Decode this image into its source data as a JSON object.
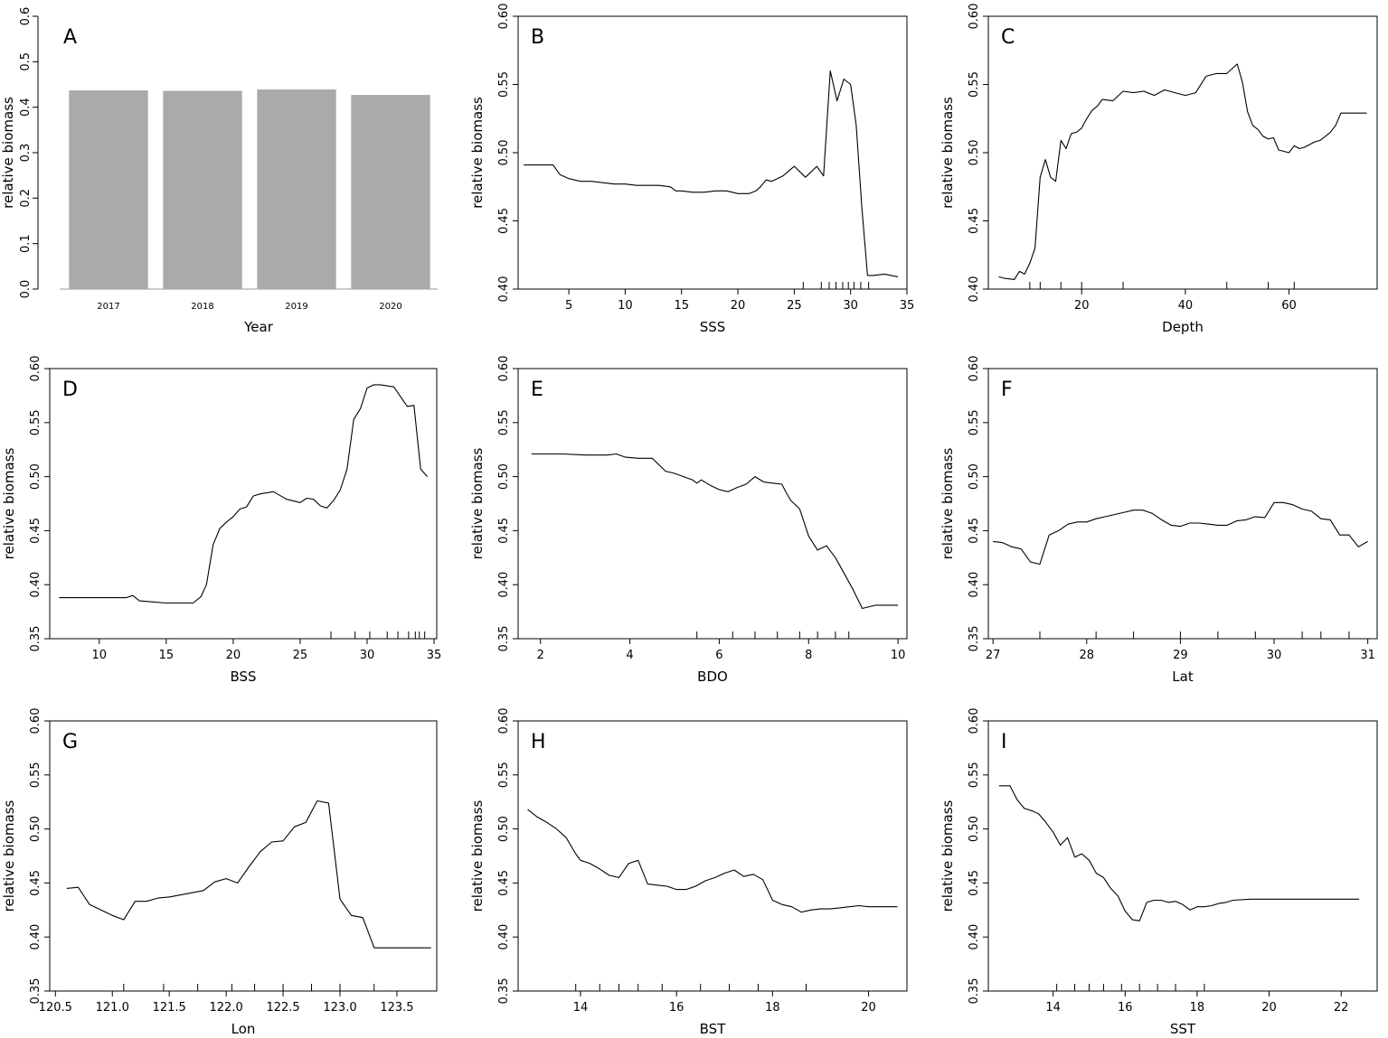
{
  "chart_data": [
    {
      "panel": "A",
      "type": "bar",
      "xlabel": "Year",
      "ylabel": "relative biomass",
      "categories": [
        "2017",
        "2018",
        "2019",
        "2020"
      ],
      "values": [
        0.437,
        0.436,
        0.439,
        0.427
      ],
      "ylim": [
        0,
        0.6
      ],
      "yticks": [
        "0.0",
        "0.1",
        "0.2",
        "0.3",
        "0.4",
        "0.5",
        "0.6"
      ],
      "bar_color": "#aaaaaa",
      "frame": false
    },
    {
      "panel": "B",
      "type": "line",
      "xlabel": "SSS",
      "ylabel": "relative biomass",
      "xlim": [
        0.5,
        35
      ],
      "ylim": [
        0.4,
        0.6
      ],
      "xticks": [
        "5",
        "10",
        "15",
        "20",
        "25",
        "30",
        "35"
      ],
      "yticks": [
        "0.40",
        "0.45",
        "0.50",
        "0.55",
        "0.60"
      ],
      "x": [
        1,
        2,
        3,
        3.6,
        4.2,
        5,
        6,
        7,
        8,
        9,
        10,
        11,
        12,
        13,
        14,
        14.5,
        15,
        16,
        17,
        18,
        19,
        20,
        21,
        21.6,
        22,
        22.5,
        23,
        24,
        25,
        26,
        27,
        27.6,
        28.2,
        28.8,
        29.4,
        30,
        30.5,
        31,
        31.5,
        32,
        33,
        34.2
      ],
      "y": [
        0.491,
        0.491,
        0.491,
        0.491,
        0.484,
        0.481,
        0.479,
        0.479,
        0.478,
        0.477,
        0.477,
        0.476,
        0.476,
        0.476,
        0.475,
        0.472,
        0.472,
        0.471,
        0.471,
        0.472,
        0.472,
        0.47,
        0.47,
        0.472,
        0.475,
        0.48,
        0.479,
        0.483,
        0.49,
        0.482,
        0.49,
        0.483,
        0.56,
        0.538,
        0.554,
        0.55,
        0.52,
        0.46,
        0.41,
        0.41,
        0.411,
        0.409
      ],
      "rug": [
        25.8,
        27.4,
        28.1,
        28.7,
        29.3,
        29.8,
        30.3,
        30.9,
        31.6
      ]
    },
    {
      "panel": "C",
      "type": "line",
      "xlabel": "Depth",
      "ylabel": "relative biomass",
      "xlim": [
        2,
        77
      ],
      "ylim": [
        0.4,
        0.6
      ],
      "xticks": [
        "20",
        "40",
        "60"
      ],
      "xtick_values": [
        20,
        40,
        60
      ],
      "yticks": [
        "0.40",
        "0.45",
        "0.50",
        "0.55",
        "0.60"
      ],
      "x": [
        4,
        5,
        7,
        8,
        9,
        10,
        11,
        12,
        13,
        14,
        15,
        16,
        17,
        18,
        19,
        20,
        21,
        22,
        23,
        24,
        26,
        28,
        30,
        32,
        34,
        36,
        38,
        40,
        42,
        44,
        46,
        48,
        50,
        51,
        52,
        53,
        54,
        55,
        56,
        57,
        58,
        60,
        61,
        62,
        63,
        64,
        65,
        66,
        67,
        68,
        69,
        70,
        71,
        72,
        73,
        74,
        75
      ],
      "y": [
        0.409,
        0.408,
        0.407,
        0.413,
        0.411,
        0.419,
        0.43,
        0.482,
        0.495,
        0.482,
        0.479,
        0.509,
        0.503,
        0.514,
        0.515,
        0.518,
        0.525,
        0.531,
        0.534,
        0.539,
        0.538,
        0.545,
        0.544,
        0.545,
        0.542,
        0.546,
        0.544,
        0.542,
        0.544,
        0.556,
        0.558,
        0.558,
        0.565,
        0.552,
        0.53,
        0.52,
        0.517,
        0.512,
        0.51,
        0.511,
        0.502,
        0.5,
        0.505,
        0.503,
        0.504,
        0.506,
        0.508,
        0.509,
        0.512,
        0.515,
        0.52,
        0.529,
        0.529,
        0.529,
        0.529,
        0.529,
        0.529
      ],
      "rug": [
        10,
        12,
        16,
        20,
        28,
        48,
        56,
        61
      ]
    },
    {
      "panel": "D",
      "type": "line",
      "xlabel": "BSS",
      "ylabel": "relative biomass",
      "xlim": [
        6.3,
        35.2
      ],
      "ylim": [
        0.35,
        0.6
      ],
      "xticks": [
        "10",
        "15",
        "20",
        "25",
        "30",
        "35"
      ],
      "yticks": [
        "0.35",
        "0.40",
        "0.45",
        "0.50",
        "0.55",
        "0.60"
      ],
      "x": [
        7,
        8,
        9,
        10,
        11,
        12,
        12.5,
        13,
        14,
        15,
        16,
        17,
        17.6,
        18,
        18.5,
        19,
        19.5,
        20,
        20.5,
        21,
        21.5,
        22,
        23,
        24,
        25,
        25.5,
        26,
        26.5,
        27,
        27.5,
        28,
        28.5,
        29,
        29.5,
        30,
        30.5,
        31,
        32,
        33,
        33.5,
        34,
        34.5
      ],
      "y": [
        0.388,
        0.388,
        0.388,
        0.388,
        0.388,
        0.388,
        0.39,
        0.385,
        0.384,
        0.383,
        0.383,
        0.383,
        0.389,
        0.4,
        0.437,
        0.452,
        0.458,
        0.463,
        0.47,
        0.472,
        0.482,
        0.484,
        0.486,
        0.479,
        0.476,
        0.48,
        0.479,
        0.473,
        0.471,
        0.478,
        0.488,
        0.507,
        0.553,
        0.563,
        0.582,
        0.585,
        0.585,
        0.583,
        0.565,
        0.566,
        0.507,
        0.5
      ],
      "rug": [
        27.3,
        29.1,
        30.2,
        31.5,
        32.3,
        33.1,
        33.6,
        33.9,
        34.3
      ]
    },
    {
      "panel": "E",
      "type": "line",
      "xlabel": "BDO",
      "ylabel": "relative biomass",
      "xlim": [
        1.5,
        10.2
      ],
      "ylim": [
        0.35,
        0.6
      ],
      "xticks": [
        "2",
        "4",
        "6",
        "8",
        "10"
      ],
      "yticks": [
        "0.35",
        "0.40",
        "0.45",
        "0.50",
        "0.55",
        "0.60"
      ],
      "x": [
        1.8,
        2.5,
        3,
        3.3,
        3.5,
        3.7,
        3.9,
        4.2,
        4.5,
        4.8,
        5,
        5.2,
        5.4,
        5.5,
        5.6,
        5.8,
        6,
        6.2,
        6.4,
        6.6,
        6.8,
        7,
        7.2,
        7.4,
        7.5,
        7.6,
        7.8,
        8,
        8.2,
        8.4,
        8.6,
        8.8,
        9,
        9.2,
        9.5,
        10
      ],
      "y": [
        0.521,
        0.521,
        0.52,
        0.52,
        0.52,
        0.521,
        0.518,
        0.517,
        0.517,
        0.505,
        0.503,
        0.5,
        0.497,
        0.494,
        0.497,
        0.492,
        0.488,
        0.486,
        0.49,
        0.493,
        0.5,
        0.495,
        0.494,
        0.493,
        0.485,
        0.478,
        0.47,
        0.445,
        0.432,
        0.436,
        0.425,
        0.41,
        0.395,
        0.378,
        0.381,
        0.381
      ],
      "rug": [
        5.5,
        6.3,
        6.8,
        7.3,
        7.8,
        8.2,
        8.6,
        8.9
      ]
    },
    {
      "panel": "F",
      "type": "line",
      "xlabel": "Lat",
      "ylabel": "relative biomass",
      "xlim": [
        26.95,
        31.1
      ],
      "ylim": [
        0.35,
        0.6
      ],
      "xticks": [
        "27",
        "28",
        "29",
        "30",
        "31"
      ],
      "yticks": [
        "0.35",
        "0.40",
        "0.45",
        "0.50",
        "0.55",
        "0.60"
      ],
      "x": [
        27,
        27.1,
        27.2,
        27.3,
        27.4,
        27.5,
        27.6,
        27.7,
        27.8,
        27.9,
        28,
        28.1,
        28.2,
        28.3,
        28.4,
        28.5,
        28.6,
        28.7,
        28.8,
        28.9,
        29,
        29.1,
        29.2,
        29.3,
        29.4,
        29.5,
        29.6,
        29.7,
        29.8,
        29.9,
        30,
        30.1,
        30.2,
        30.3,
        30.4,
        30.5,
        30.6,
        30.7,
        30.8,
        30.9,
        31
      ],
      "y": [
        0.44,
        0.439,
        0.435,
        0.433,
        0.421,
        0.419,
        0.446,
        0.45,
        0.456,
        0.458,
        0.458,
        0.461,
        0.463,
        0.465,
        0.467,
        0.469,
        0.469,
        0.466,
        0.46,
        0.455,
        0.454,
        0.457,
        0.457,
        0.456,
        0.455,
        0.455,
        0.459,
        0.46,
        0.463,
        0.462,
        0.476,
        0.476,
        0.474,
        0.47,
        0.468,
        0.461,
        0.46,
        0.446,
        0.446,
        0.435,
        0.44
      ],
      "rug": [
        27.5,
        28.1,
        28.5,
        29,
        29.4,
        29.8,
        30.3,
        30.5,
        30.8
      ]
    },
    {
      "panel": "G",
      "type": "line",
      "xlabel": "Lon",
      "ylabel": "relative biomass",
      "xlim": [
        120.45,
        123.85
      ],
      "ylim": [
        0.35,
        0.6
      ],
      "xticks": [
        "120.5",
        "121.0",
        "121.5",
        "122.0",
        "122.5",
        "123.0",
        "123.5"
      ],
      "yticks": [
        "0.35",
        "0.40",
        "0.45",
        "0.50",
        "0.55",
        "0.60"
      ],
      "x": [
        120.6,
        120.7,
        120.8,
        120.9,
        121,
        121.1,
        121.2,
        121.3,
        121.4,
        121.5,
        121.6,
        121.7,
        121.8,
        121.9,
        122,
        122.1,
        122.2,
        122.3,
        122.4,
        122.5,
        122.6,
        122.7,
        122.8,
        122.9,
        123,
        123.1,
        123.2,
        123.3,
        123.4,
        123.5,
        123.6,
        123.7,
        123.8
      ],
      "y": [
        0.445,
        0.446,
        0.43,
        0.425,
        0.42,
        0.416,
        0.433,
        0.433,
        0.436,
        0.437,
        0.439,
        0.441,
        0.443,
        0.451,
        0.454,
        0.45,
        0.465,
        0.479,
        0.488,
        0.489,
        0.502,
        0.506,
        0.526,
        0.524,
        0.435,
        0.42,
        0.418,
        0.39,
        0.39,
        0.39,
        0.39,
        0.39,
        0.39
      ],
      "rug": [
        121.1,
        121.45,
        121.75,
        122.05,
        122.25,
        122.5,
        122.75,
        123.0,
        123.3
      ]
    },
    {
      "panel": "H",
      "type": "line",
      "xlabel": "BST",
      "ylabel": "relative biomass",
      "xlim": [
        12.7,
        20.8
      ],
      "ylim": [
        0.35,
        0.6
      ],
      "xticks": [
        "14",
        "16",
        "18",
        "20"
      ],
      "xtick_values": [
        14,
        16,
        18,
        20
      ],
      "yticks": [
        "0.35",
        "0.40",
        "0.45",
        "0.50",
        "0.55",
        "0.60"
      ],
      "x": [
        12.9,
        13.1,
        13.3,
        13.5,
        13.7,
        13.9,
        14,
        14.2,
        14.4,
        14.6,
        14.8,
        15,
        15.2,
        15.4,
        15.6,
        15.8,
        16,
        16.2,
        16.4,
        16.6,
        16.8,
        17,
        17.2,
        17.4,
        17.6,
        17.8,
        18,
        18.2,
        18.4,
        18.6,
        18.8,
        19,
        19.2,
        19.4,
        19.6,
        19.8,
        20,
        20.2,
        20.4,
        20.6
      ],
      "y": [
        0.518,
        0.511,
        0.506,
        0.5,
        0.492,
        0.477,
        0.471,
        0.468,
        0.463,
        0.457,
        0.455,
        0.468,
        0.471,
        0.449,
        0.448,
        0.447,
        0.444,
        0.444,
        0.447,
        0.452,
        0.455,
        0.459,
        0.462,
        0.456,
        0.458,
        0.453,
        0.434,
        0.43,
        0.428,
        0.423,
        0.425,
        0.426,
        0.426,
        0.427,
        0.428,
        0.429,
        0.428,
        0.428,
        0.428,
        0.428
      ],
      "rug": [
        13.9,
        14.4,
        14.8,
        15.2,
        15.7,
        16.5,
        17.1,
        17.7,
        18.7
      ]
    },
    {
      "panel": "I",
      "type": "line",
      "xlabel": "SST",
      "ylabel": "relative biomass",
      "xlim": [
        12.2,
        23
      ],
      "ylim": [
        0.35,
        0.6
      ],
      "xticks": [
        "14",
        "16",
        "18",
        "20",
        "22"
      ],
      "xtick_values": [
        14,
        16,
        18,
        20,
        22
      ],
      "yticks": [
        "0.35",
        "0.40",
        "0.45",
        "0.50",
        "0.55",
        "0.60"
      ],
      "x": [
        12.5,
        12.8,
        13,
        13.2,
        13.4,
        13.6,
        13.8,
        14,
        14.2,
        14.4,
        14.6,
        14.8,
        15,
        15.2,
        15.4,
        15.6,
        15.8,
        16,
        16.2,
        16.4,
        16.6,
        16.8,
        17,
        17.2,
        17.4,
        17.6,
        17.8,
        18,
        18.2,
        18.4,
        18.6,
        18.8,
        19,
        19.5,
        20,
        21,
        22,
        22.5
      ],
      "y": [
        0.54,
        0.54,
        0.527,
        0.519,
        0.517,
        0.514,
        0.506,
        0.497,
        0.485,
        0.492,
        0.474,
        0.477,
        0.471,
        0.459,
        0.455,
        0.445,
        0.438,
        0.424,
        0.416,
        0.415,
        0.432,
        0.434,
        0.434,
        0.432,
        0.433,
        0.43,
        0.425,
        0.428,
        0.428,
        0.429,
        0.431,
        0.432,
        0.434,
        0.435,
        0.435,
        0.435,
        0.435,
        0.435
      ],
      "rug": [
        14.1,
        14.6,
        15,
        15.4,
        15.9,
        16.4,
        16.9,
        17.4,
        18.2
      ]
    }
  ]
}
